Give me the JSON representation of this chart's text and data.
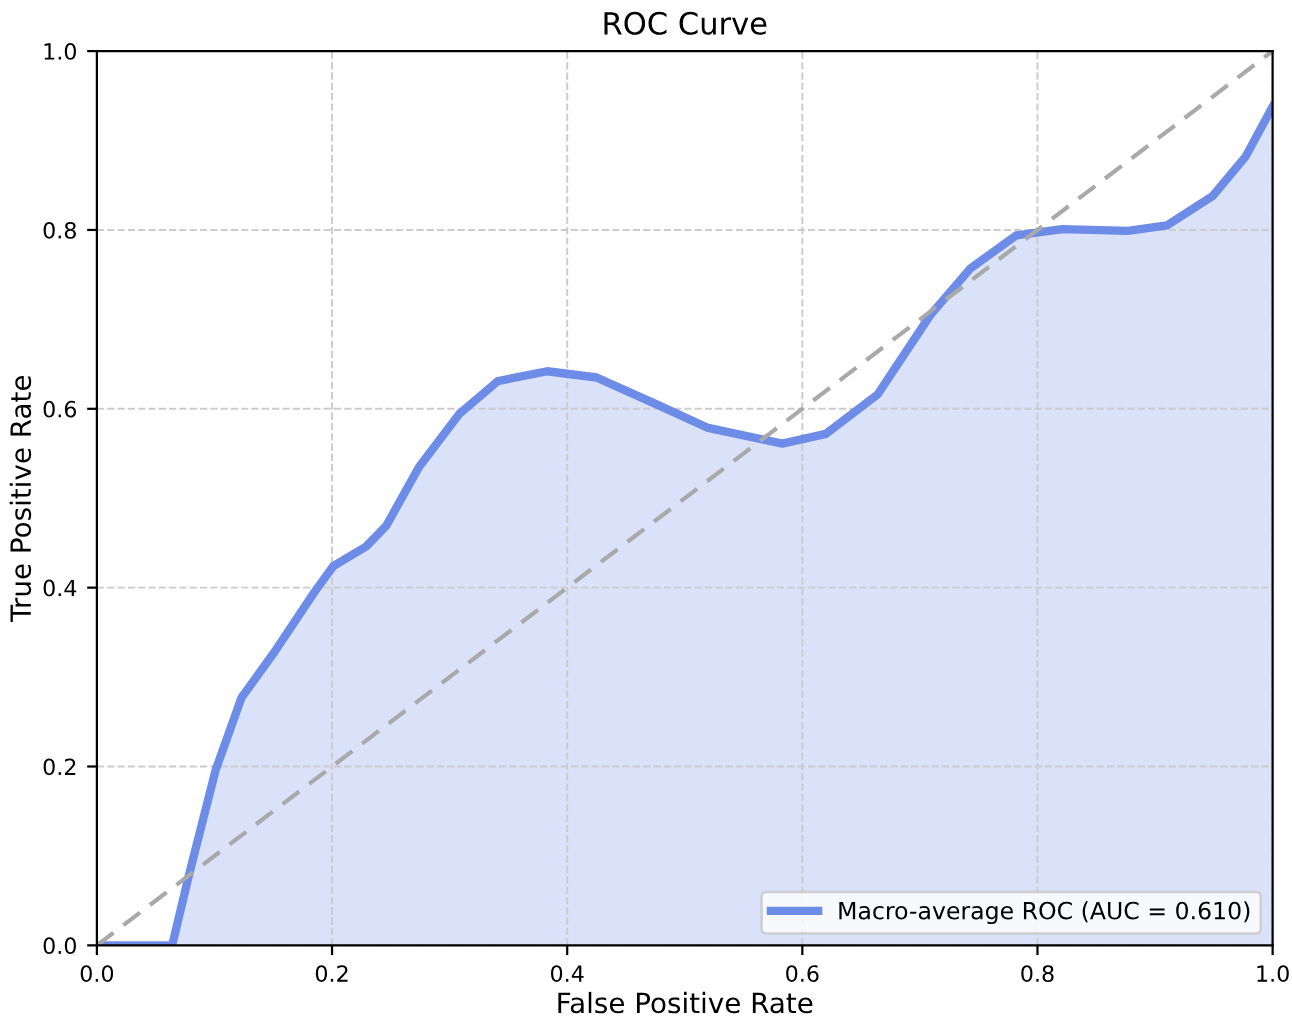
{
  "chart_data": {
    "type": "area",
    "title": "ROC Curve",
    "xlabel": "False Positive Rate",
    "ylabel": "True Positive Rate",
    "xlim": [
      0,
      1
    ],
    "ylim": [
      0,
      1
    ],
    "xticks": [
      {
        "value": 0,
        "label": "0.0"
      },
      0.2,
      0.4,
      0.6,
      0.8,
      {
        "value": 1,
        "label": "1.0"
      }
    ],
    "yticks": [
      {
        "value": 0,
        "label": "0.0"
      },
      0.2,
      0.4,
      0.6,
      0.8,
      {
        "value": 1,
        "label": "1.0"
      }
    ],
    "grid": true,
    "legend": "bottom right",
    "series": [
      {
        "name": "Macro-average ROC (AUC = 0.610)",
        "color": "#6d8ce8",
        "line_style": "solid",
        "x": [
          0.0,
          0.064,
          0.078,
          0.101,
          0.123,
          0.151,
          0.185,
          0.201,
          0.229,
          0.246,
          0.274,
          0.308,
          0.341,
          0.383,
          0.425,
          0.476,
          0.519,
          0.583,
          0.62,
          0.664,
          0.709,
          0.743,
          0.782,
          0.821,
          0.877,
          0.91,
          0.949,
          0.977,
          1.0
        ],
        "values": [
          0.0,
          0.0,
          0.077,
          0.196,
          0.277,
          0.328,
          0.395,
          0.424,
          0.446,
          0.469,
          0.535,
          0.594,
          0.631,
          0.642,
          0.635,
          0.605,
          0.579,
          0.561,
          0.572,
          0.616,
          0.705,
          0.757,
          0.794,
          0.801,
          0.799,
          0.805,
          0.838,
          0.882,
          0.938
        ]
      },
      {
        "type": "line",
        "color": "#a9a9a9",
        "line_style": "dashed",
        "x": [
          0,
          1
        ],
        "values": [
          0,
          1
        ]
      }
    ]
  }
}
